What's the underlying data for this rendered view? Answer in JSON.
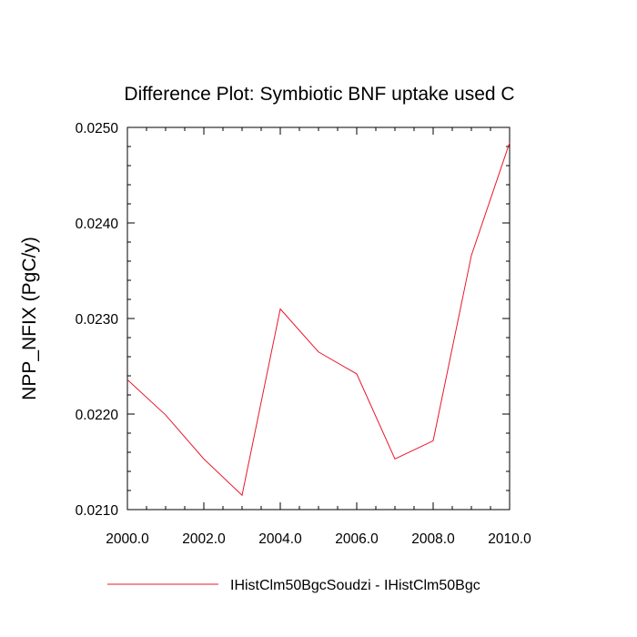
{
  "chart_data": {
    "type": "line",
    "title": "Difference Plot: Symbiotic BNF uptake used C",
    "xlabel": "",
    "ylabel": "NPP_NFIX  (PgC/y)",
    "xlim": [
      2000.0,
      2010.0
    ],
    "ylim": [
      0.021,
      0.025
    ],
    "x_ticks": [
      2000.0,
      2002.0,
      2004.0,
      2006.0,
      2008.0,
      2010.0
    ],
    "x_tick_labels": [
      "2000.0",
      "2002.0",
      "2004.0",
      "2006.0",
      "2008.0",
      "2010.0"
    ],
    "y_ticks": [
      0.021,
      0.022,
      0.023,
      0.024,
      0.025
    ],
    "y_tick_labels": [
      "0.0210",
      "0.0220",
      "0.0230",
      "0.0240",
      "0.0250"
    ],
    "grid": false,
    "legend_position": "bottom",
    "series": [
      {
        "name": "IHistClm50BgcSoudzi - IHistClm50Bgc",
        "color": "#e8182b",
        "x": [
          2000,
          2001,
          2002,
          2003,
          2004,
          2005,
          2006,
          2007,
          2008,
          2009,
          2010
        ],
        "y": [
          0.02236,
          0.02199,
          0.02153,
          0.02115,
          0.0231,
          0.02265,
          0.02242,
          0.02153,
          0.02172,
          0.02366,
          0.02484
        ]
      }
    ]
  }
}
